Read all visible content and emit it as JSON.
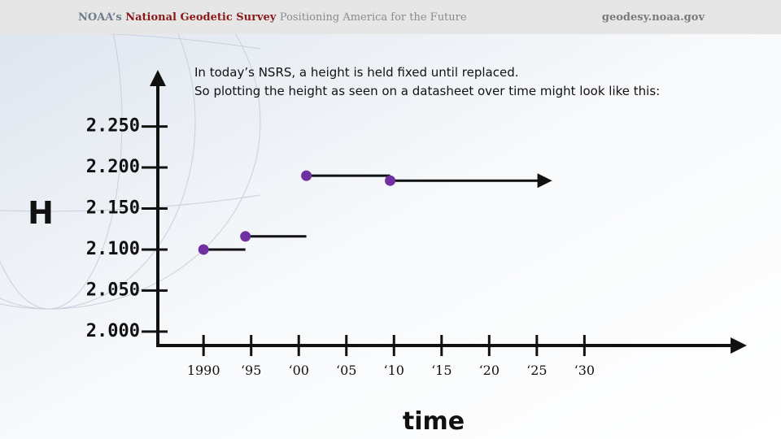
{
  "header": {
    "org": "NOAA’s",
    "agency": "National Geodetic Survey",
    "tagline": "Positioning America for the Future",
    "url": "geodesy.noaa.gov"
  },
  "chart_data": {
    "type": "step",
    "title": "In today’s NSRS, a height is held fixed until replaced.",
    "subtitle": "So plotting the height as seen on a datasheet over time might  look like this:",
    "y_label": "H",
    "x_label": "time",
    "x": [
      1990,
      1994.4,
      2000.8,
      2009.6
    ],
    "values": [
      2.1,
      2.116,
      2.19,
      2.184
    ],
    "color": "#7030a0",
    "xlim": [
      1985.2,
      2046.8
    ],
    "ylim": [
      1.983,
      2.317
    ],
    "xticks": [
      1990,
      {
        "value": 1995,
        "label": "‘95"
      },
      {
        "value": 2000,
        "label": "‘00"
      },
      {
        "value": 2005,
        "label": "‘05"
      },
      {
        "value": 2010,
        "label": "‘10"
      },
      {
        "value": 2015,
        "label": "‘15"
      },
      {
        "value": 2020,
        "label": "‘20"
      },
      {
        "value": 2025,
        "label": "‘25"
      },
      {
        "value": 2030,
        "label": "‘30"
      }
    ],
    "yticks": [
      {
        "value": 2.0,
        "label": "2.000"
      },
      {
        "value": 2.05,
        "label": "2.050"
      },
      {
        "value": 2.1,
        "label": "2.100"
      },
      {
        "value": 2.15,
        "label": "2.150"
      },
      {
        "value": 2.2,
        "label": "2.200"
      },
      {
        "value": 2.25,
        "label": "2.250"
      }
    ]
  }
}
